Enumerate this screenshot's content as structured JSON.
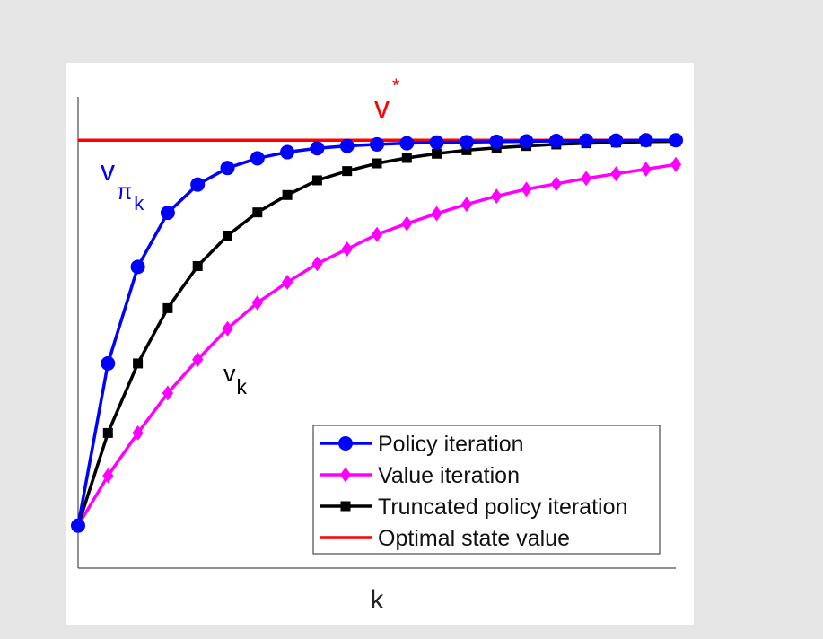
{
  "chart_data": {
    "type": "line",
    "title": "",
    "xlabel": "k",
    "ylabel": "",
    "x": [
      0,
      1,
      2,
      3,
      4,
      5,
      6,
      7,
      8,
      9,
      10,
      11,
      12,
      13,
      14,
      15,
      16,
      17,
      18,
      19,
      20
    ],
    "xlim": [
      0,
      20
    ],
    "ylim": [
      -0.11,
      1.11
    ],
    "grid": false,
    "legend_position": "bottom-right",
    "series": [
      {
        "name": "Policy iteration",
        "color": "#0000ff",
        "marker": "circle",
        "values": [
          0.0,
          0.42,
          0.67,
          0.81,
          0.883,
          0.926,
          0.951,
          0.967,
          0.977,
          0.983,
          0.987,
          0.99,
          0.992,
          0.993,
          0.994,
          0.995,
          0.996,
          0.997,
          0.997,
          0.998,
          0.998
        ]
      },
      {
        "name": "Value iteration",
        "color": "#ff00ff",
        "marker": "diamond",
        "values": [
          0.0,
          0.129,
          0.24,
          0.343,
          0.43,
          0.51,
          0.577,
          0.63,
          0.678,
          0.716,
          0.754,
          0.782,
          0.808,
          0.832,
          0.853,
          0.871,
          0.885,
          0.899,
          0.911,
          0.923,
          0.935
        ]
      },
      {
        "name": "Truncated policy iteration",
        "color": "#000000",
        "marker": "square",
        "values": [
          0.0,
          0.24,
          0.42,
          0.563,
          0.672,
          0.751,
          0.811,
          0.856,
          0.894,
          0.918,
          0.938,
          0.952,
          0.963,
          0.972,
          0.978,
          0.983,
          0.987,
          0.99,
          0.992,
          0.994,
          0.995
        ]
      },
      {
        "name": "Optimal state value",
        "color": "#ff0000",
        "marker": "none",
        "values": [
          0.998,
          0.998,
          0.998,
          0.998,
          0.998,
          0.998,
          0.998,
          0.998,
          0.998,
          0.998,
          0.998,
          0.998,
          0.998,
          0.998,
          0.998,
          0.998,
          0.998,
          0.998,
          0.998,
          0.998,
          0.998
        ]
      }
    ],
    "annotations": {
      "v_star": {
        "main": "v",
        "sup": "*",
        "color": "#ff0000"
      },
      "v_pi_k": {
        "main": "v",
        "sub": "π",
        "subsub": "k",
        "color": "#0000ff"
      },
      "v_k": {
        "main": "v",
        "sub": "k",
        "color": "#000000"
      }
    }
  }
}
